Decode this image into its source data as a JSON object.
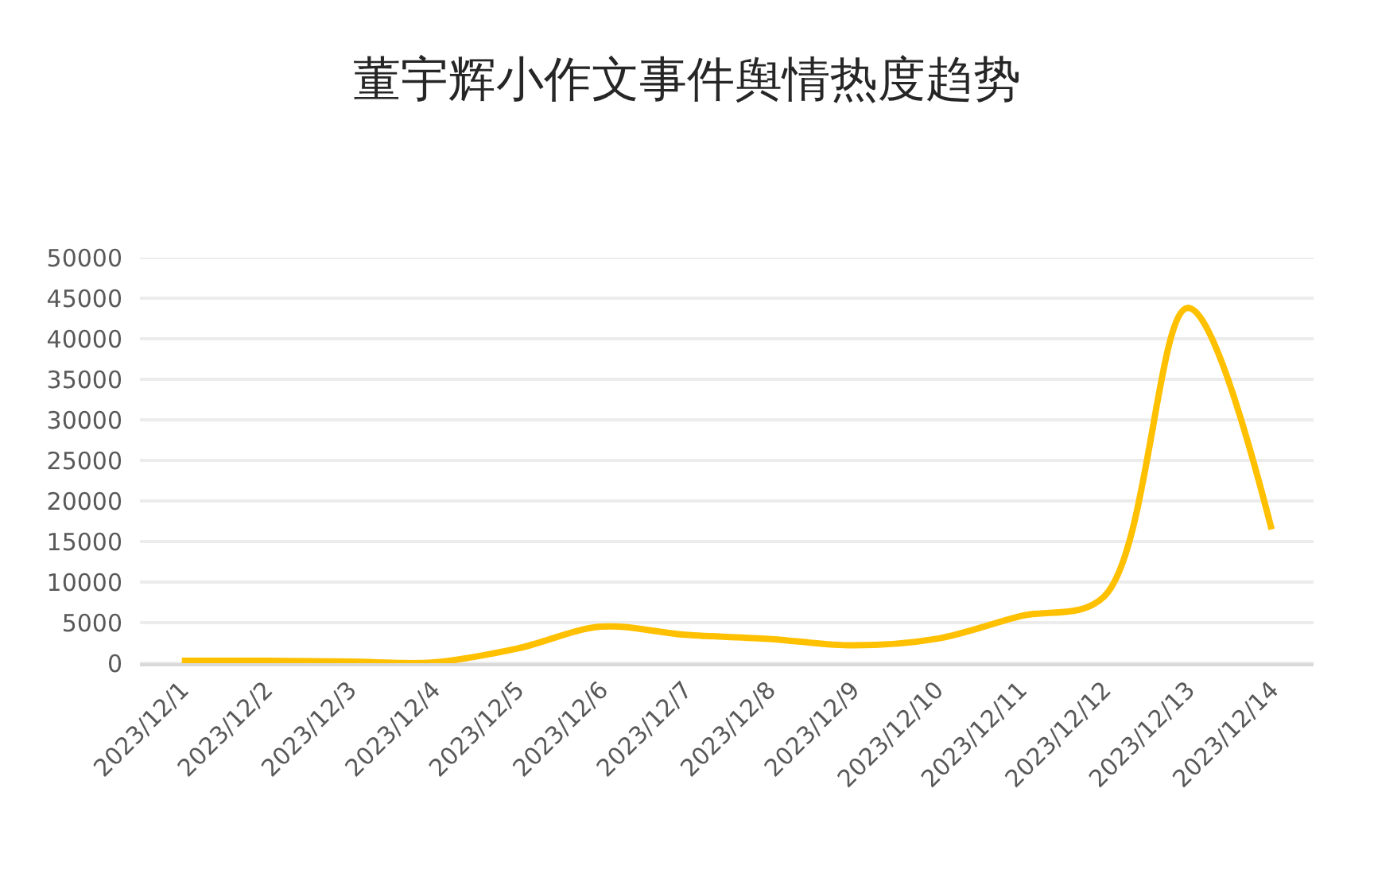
{
  "chart_data": {
    "type": "line",
    "title": "董宇辉小作文事件舆情热度趋势",
    "categories": [
      "2023/12/1",
      "2023/12/2",
      "2023/12/3",
      "2023/12/4",
      "2023/12/5",
      "2023/12/6",
      "2023/12/7",
      "2023/12/8",
      "2023/12/9",
      "2023/12/10",
      "2023/12/11",
      "2023/12/12",
      "2023/12/13",
      "2023/12/14"
    ],
    "series": [
      {
        "color": "#ffc000",
        "values": [
          300,
          300,
          200,
          100,
          1800,
          4500,
          3500,
          3000,
          2200,
          3000,
          5800,
          8200,
          43800,
          16500
        ]
      }
    ],
    "ylim": [
      0,
      50000
    ],
    "yticks": [
      0,
      5000,
      10000,
      15000,
      20000,
      25000,
      30000,
      35000,
      40000,
      45000,
      50000
    ],
    "grid": "y",
    "marker": "none",
    "line_style": "solid"
  }
}
